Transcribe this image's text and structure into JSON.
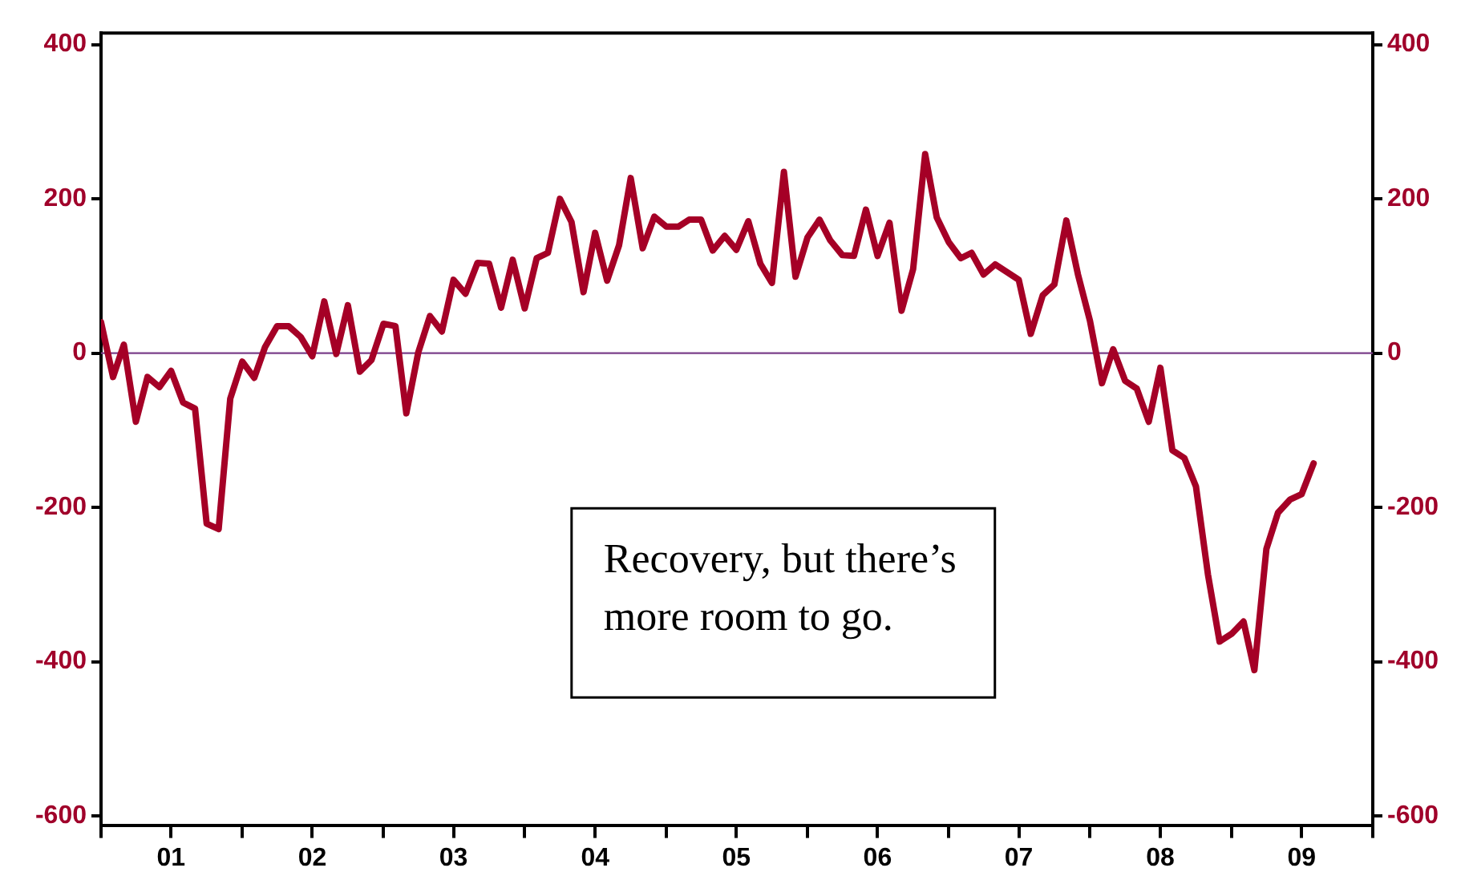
{
  "chart_data": {
    "type": "line",
    "x": [
      "2001-01",
      "2001-02",
      "2001-03",
      "2001-04",
      "2001-05",
      "2001-06",
      "2001-07",
      "2001-08",
      "2001-09",
      "2001-10",
      "2001-11",
      "2001-12",
      "2002-01",
      "2002-02",
      "2002-03",
      "2002-04",
      "2002-05",
      "2002-06",
      "2002-07",
      "2002-08",
      "2002-09",
      "2002-10",
      "2002-11",
      "2002-12",
      "2003-01",
      "2003-02",
      "2003-03",
      "2003-04",
      "2003-05",
      "2003-06",
      "2003-07",
      "2003-08",
      "2003-09",
      "2003-10",
      "2003-11",
      "2003-12",
      "2004-01",
      "2004-02",
      "2004-03",
      "2004-04",
      "2004-05",
      "2004-06",
      "2004-07",
      "2004-08",
      "2004-09",
      "2004-10",
      "2004-11",
      "2004-12",
      "2005-01",
      "2005-02",
      "2005-03",
      "2005-04",
      "2005-05",
      "2005-06",
      "2005-07",
      "2005-08",
      "2005-09",
      "2005-10",
      "2005-11",
      "2005-12",
      "2006-01",
      "2006-02",
      "2006-03",
      "2006-04",
      "2006-05",
      "2006-06",
      "2006-07",
      "2006-08",
      "2006-09",
      "2006-10",
      "2006-11",
      "2006-12",
      "2007-01",
      "2007-02",
      "2007-03",
      "2007-04",
      "2007-05",
      "2007-06",
      "2007-07",
      "2007-08",
      "2007-09",
      "2007-10",
      "2007-11",
      "2007-12",
      "2008-01",
      "2008-02",
      "2008-03",
      "2008-04",
      "2008-05",
      "2008-06",
      "2008-07",
      "2008-08",
      "2008-09",
      "2008-10",
      "2008-11",
      "2008-12",
      "2009-01",
      "2009-02",
      "2009-03",
      "2009-04",
      "2009-05",
      "2009-06",
      "2009-07",
      "2009-08"
    ],
    "series": [
      {
        "color": "#a50026",
        "values": [
          40,
          -31,
          11,
          -89,
          -31,
          -44,
          -23,
          -64,
          -72,
          -221,
          -228,
          -59,
          -11,
          -32,
          8,
          35,
          35,
          21,
          -4,
          67,
          -1,
          62,
          -24,
          -9,
          38,
          35,
          -78,
          1,
          48,
          28,
          95,
          77,
          117,
          116,
          59,
          121,
          58,
          123,
          130,
          200,
          170,
          79,
          156,
          94,
          140,
          227,
          136,
          177,
          164,
          164,
          173,
          173,
          133,
          152,
          134,
          171,
          116,
          91,
          235,
          99,
          150,
          173,
          146,
          127,
          126,
          186,
          126,
          169,
          55,
          109,
          258,
          176,
          144,
          123,
          130,
          102,
          115,
          105,
          95,
          25,
          75,
          89,
          172,
          102,
          42,
          -39,
          5,
          -36,
          -46,
          -89,
          -19,
          -126,
          -136,
          -173,
          -287,
          -374,
          -364,
          -348,
          -411,
          -254,
          -207,
          -190,
          -183,
          -143
        ]
      }
    ],
    "xlim": [
      "2001-01",
      "2010-01"
    ],
    "xticks": [
      {
        "value": "2001-01",
        "label": null
      },
      {
        "value": "2001-07",
        "label": "01"
      },
      {
        "value": "2002-01",
        "label": null
      },
      {
        "value": "2002-07",
        "label": "02"
      },
      {
        "value": "2003-01",
        "label": null
      },
      {
        "value": "2003-07",
        "label": "03"
      },
      {
        "value": "2004-01",
        "label": null
      },
      {
        "value": "2004-07",
        "label": "04"
      },
      {
        "value": "2005-01",
        "label": null
      },
      {
        "value": "2005-07",
        "label": "05"
      },
      {
        "value": "2006-01",
        "label": null
      },
      {
        "value": "2006-07",
        "label": "06"
      },
      {
        "value": "2007-01",
        "label": null
      },
      {
        "value": "2007-07",
        "label": "07"
      },
      {
        "value": "2008-01",
        "label": null
      },
      {
        "value": "2008-07",
        "label": "08"
      },
      {
        "value": "2009-01",
        "label": null
      },
      {
        "value": "2009-07",
        "label": "09"
      },
      {
        "value": "2010-01",
        "label": null
      }
    ],
    "ylim": [
      -612,
      415
    ],
    "yticks": [
      -600,
      -400,
      -200,
      0,
      200,
      400
    ],
    "y2lim": [
      -612,
      415
    ],
    "y2ticks": [
      -600,
      -400,
      -200,
      0,
      200,
      400
    ],
    "ref_lines": [
      {
        "axis": "y",
        "value": 0,
        "color": "#7b3f8a"
      }
    ],
    "annotations": [
      "Recovery, but there’s\nmore room to go."
    ],
    "grid": false,
    "legend": false,
    "marker": "none",
    "line_style": "solid"
  }
}
